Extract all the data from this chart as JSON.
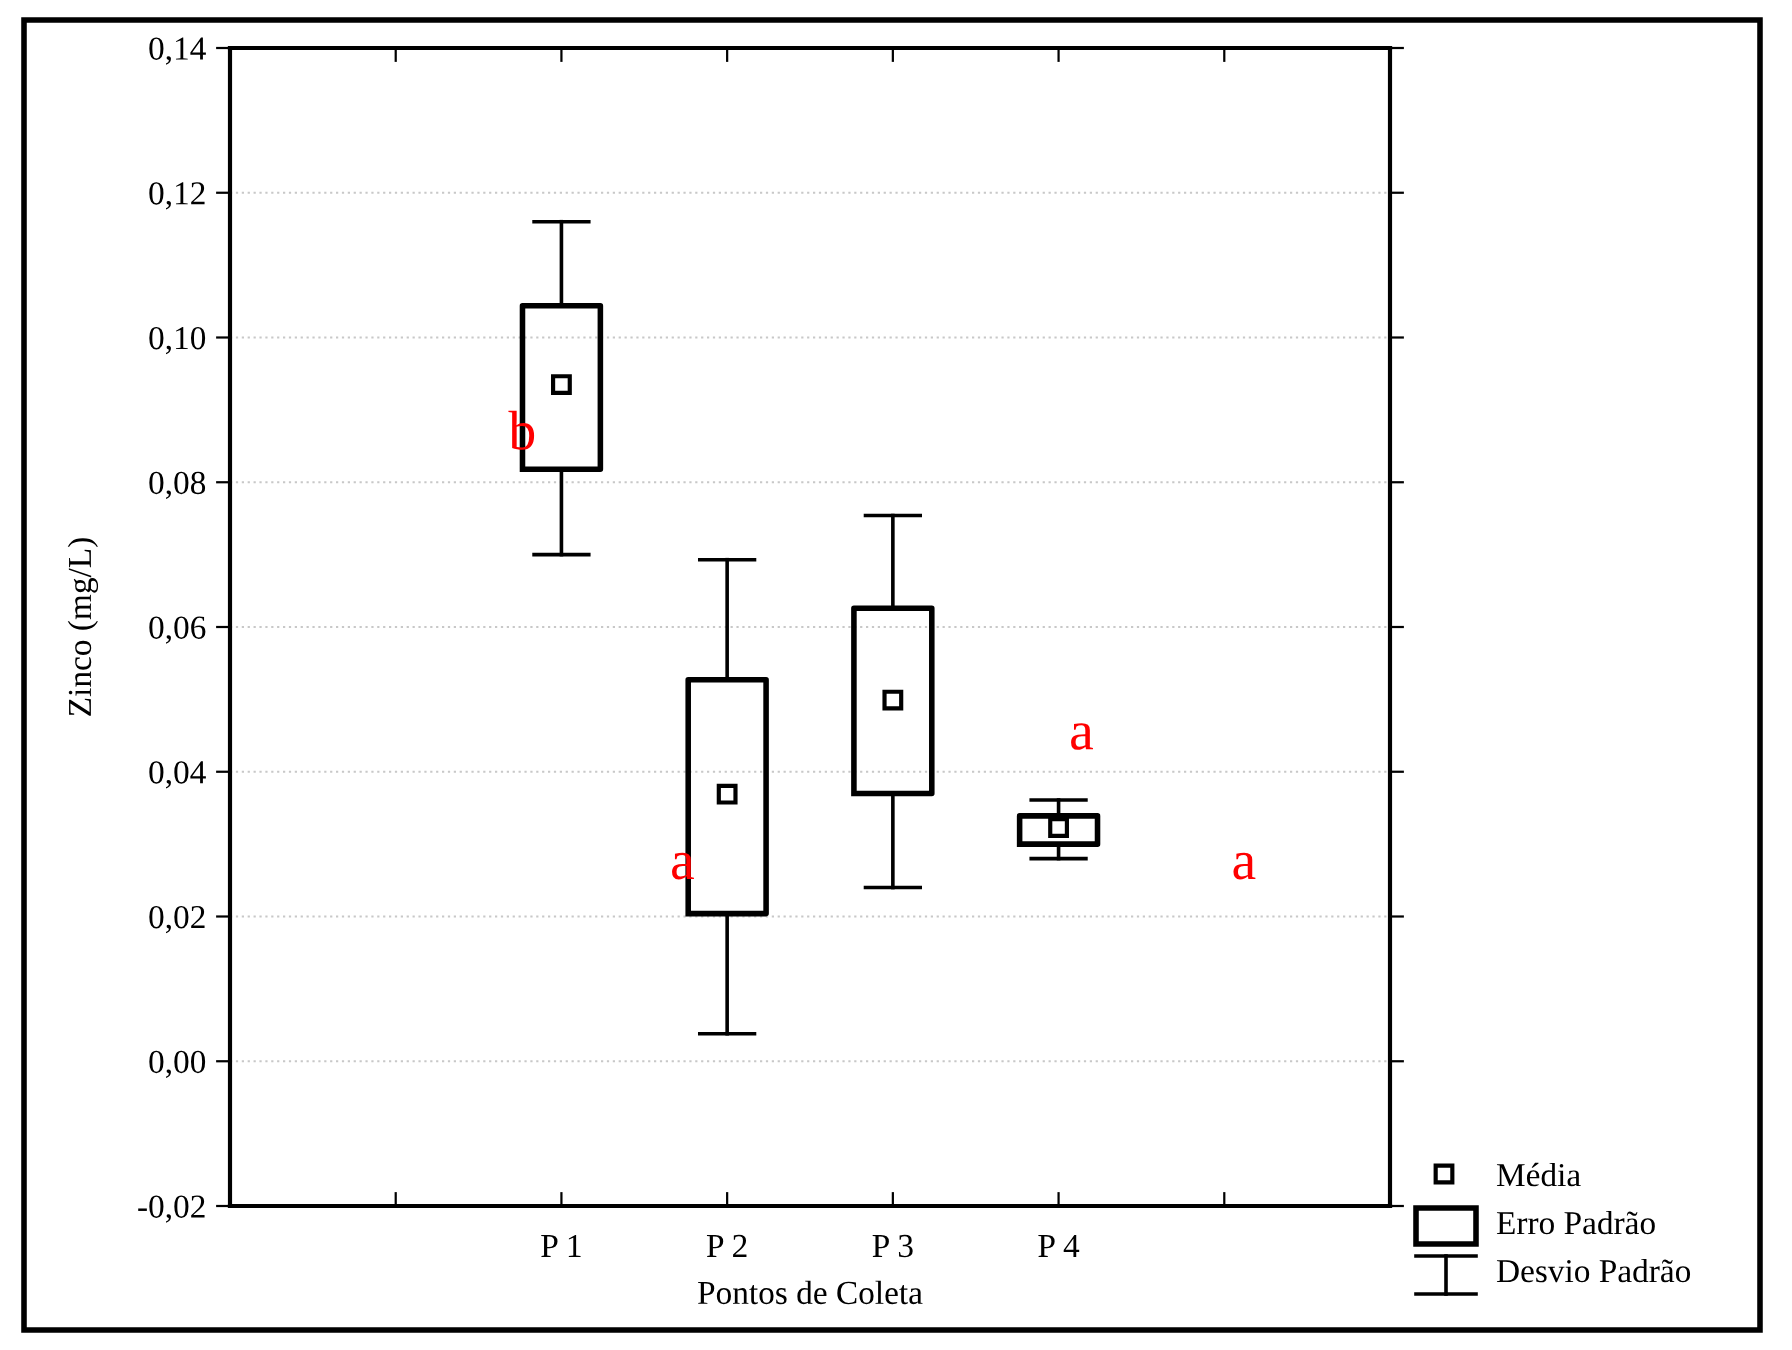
{
  "chart_data": {
    "type": "box",
    "xlabel": "Pontos de Coleta",
    "ylabel": "Zinco (mg/L)",
    "categories": [
      null,
      "P 1",
      "P 2",
      "P 3",
      "P 4",
      null
    ],
    "boxes": [
      null,
      {
        "low": 0.07,
        "q1": 0.0818,
        "q3": 0.1044,
        "high": 0.116,
        "mean": 0.0935
      },
      {
        "low": 0.0038,
        "q1": 0.0204,
        "q3": 0.0527,
        "high": 0.0693,
        "mean": 0.0369
      },
      {
        "low": 0.024,
        "q1": 0.037,
        "q3": 0.0626,
        "high": 0.0754,
        "mean": 0.0499
      },
      {
        "low": 0.028,
        "q1": 0.03,
        "q3": 0.0339,
        "high": 0.0361,
        "mean": 0.0323
      },
      null
    ],
    "ylim": [
      -0.02,
      0.14
    ],
    "yticks": [
      {
        "value": -0.02,
        "label": "-0,02"
      },
      {
        "value": 0.0,
        "label": "0,00"
      },
      {
        "value": 0.02,
        "label": "0,02"
      },
      {
        "value": 0.04,
        "label": "0,04"
      },
      {
        "value": 0.06,
        "label": "0,06"
      },
      {
        "value": 0.08,
        "label": "0,08"
      },
      {
        "value": 0.1,
        "label": "0,10"
      },
      {
        "value": 0.12,
        "label": "0,12"
      },
      {
        "value": 0.14,
        "label": "0,14"
      }
    ],
    "grid": "y",
    "marker": "square",
    "annotations": [
      "b",
      "a",
      "a",
      "a",
      "Média",
      "Erro Padrão",
      "Desvio Padrão"
    ]
  }
}
